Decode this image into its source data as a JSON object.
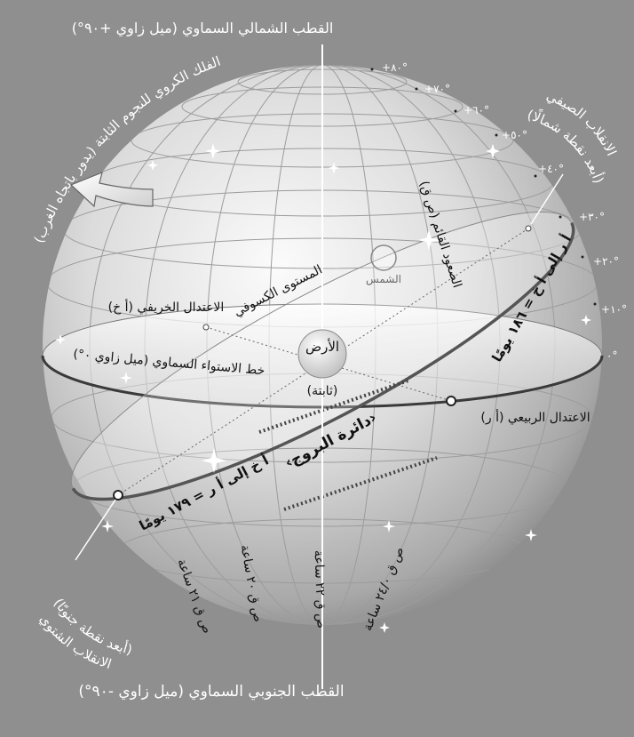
{
  "labels": {
    "north_pole": "القطب الشمالي السماوي (ميل زاوي +٩٠°)",
    "south_pole": "القطب الجنوبي السماوي (ميل زاوي -٩٠°)",
    "celestial_sphere": "الفلك الكروي للنجوم الثابتة (يدور باتجاه الغرب)",
    "summer_solstice": "الانقلاب الصيفي",
    "summer_solstice_sub": "(أبعد نقطة شمالًا)",
    "winter_solstice": "الانقلاب الشتوي",
    "winter_solstice_sub": "(أبعد نقطة جنوبًا)",
    "right_ascension": "الصعود القائم (ص ق)",
    "sun": "الشمس",
    "ecliptic_plane": "المستوى الكسوفي",
    "autumn_equinox": "الاعتدال الخريفي (أ خ)",
    "earth": "الأرض",
    "earth_fixed": "(ثابتة)",
    "celestial_equator": "خط الاستواء السماوي (ميل زاوي ٠°)",
    "spring_equinox": "الاعتدال الربيعي (أ ر)",
    "spring_to_autumn": "أ ر إلى أ خ = ١٨٦ يومًا",
    "autumn_to_spring": "أ خ إلى أ ر = ١٧٩ يومًا",
    "ecliptic_circle": "‹دائرة البروج›",
    "ra_21": "ص ق ٢١ ساعة",
    "ra_20": "ص ق ٢٠ ساعة",
    "ra_22": "ص ق ٢٢ ساعة",
    "ra_24": "ص ق ٢٤/٠ ساعة"
  },
  "declination_ticks": [
    "+٨٠°",
    "+٧٠°",
    "+٦٠°",
    "+٥٠°",
    "+٤٠°",
    "+٣٠°",
    "+٢٠°",
    "+١٠°",
    "٠°"
  ],
  "colors": {
    "background": "#8f8f8f",
    "sphere_light": "#f4f4f4",
    "sphere_dark": "#6e6e6e",
    "equator": "#3a3a3a",
    "ecliptic": "#555555",
    "text": "#111111",
    "white_text": "#ffffff"
  },
  "icons": [
    "star-icon",
    "rotation-arrow-icon",
    "sun-icon",
    "earth-icon"
  ]
}
